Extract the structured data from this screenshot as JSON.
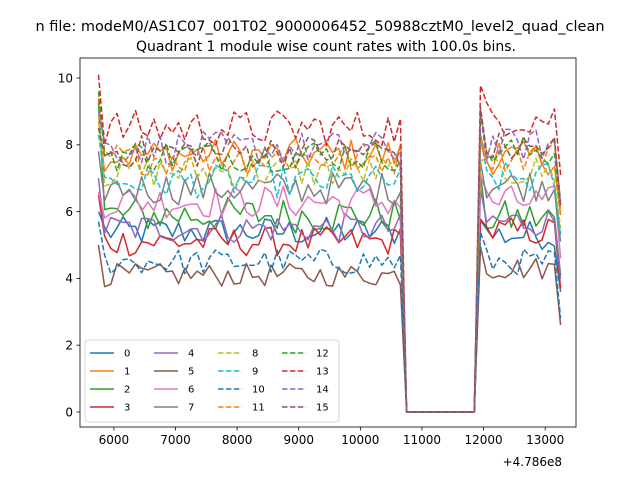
{
  "figure": {
    "suptitle": "n file: modeM0/AS1C07_001T02_9000006452_50988cztM0_level2_quad_clean",
    "title": "Quadrant 1 module wise count rates with 100.0s bins.",
    "offset_label": "+4.786e8"
  },
  "chart_data": {
    "type": "line",
    "title": "Quadrant 1 module wise count rates with 100.0s bins.",
    "xlabel": "",
    "ylabel": "",
    "x_offset": 478600000,
    "xlim": [
      5450,
      13500
    ],
    "ylim": [
      -0.45,
      10.6
    ],
    "x_ticks": [
      6000,
      7000,
      8000,
      9000,
      10000,
      11000,
      12000,
      13000
    ],
    "x_tick_labels": [
      "6000",
      "7000",
      "8000",
      "9000",
      "10000",
      "11000",
      "12000",
      "13000"
    ],
    "y_ticks": [
      0,
      2,
      4,
      6,
      8,
      10
    ],
    "y_tick_labels": [
      "0",
      "2",
      "4",
      "6",
      "8",
      "10"
    ],
    "grid": false,
    "legend_placement": "lower-left",
    "gap": {
      "start": 10750,
      "end": 11850
    },
    "active_a": {
      "start": 5750,
      "end": 10650
    },
    "active_b": {
      "start": 11950,
      "end": 13250
    },
    "series": [
      {
        "name": "0",
        "color": "#1f77b4",
        "dash": "solid",
        "level_a": 5.4,
        "level_b": 5.3,
        "start": 6.0,
        "spread": 0.45
      },
      {
        "name": "1",
        "color": "#ff7f0e",
        "dash": "solid",
        "level_a": 7.7,
        "level_b": 7.6,
        "start": 8.7,
        "spread": 0.5
      },
      {
        "name": "2",
        "color": "#2ca02c",
        "dash": "solid",
        "level_a": 5.9,
        "level_b": 5.8,
        "start": 9.3,
        "spread": 0.55
      },
      {
        "name": "3",
        "color": "#d62728",
        "dash": "solid",
        "level_a": 5.1,
        "level_b": 5.4,
        "start": 6.5,
        "spread": 0.45
      },
      {
        "name": "4",
        "color": "#9467bd",
        "dash": "solid",
        "level_a": 5.5,
        "level_b": 5.7,
        "start": 7.0,
        "spread": 0.45
      },
      {
        "name": "5",
        "color": "#8c564b",
        "dash": "solid",
        "level_a": 4.1,
        "level_b": 4.3,
        "start": 5.0,
        "spread": 0.35
      },
      {
        "name": "6",
        "color": "#e377c2",
        "dash": "solid",
        "level_a": 6.3,
        "level_b": 6.3,
        "start": 6.6,
        "spread": 0.5
      },
      {
        "name": "7",
        "color": "#7f7f7f",
        "dash": "solid",
        "level_a": 6.7,
        "level_b": 6.8,
        "start": 7.8,
        "spread": 0.5
      },
      {
        "name": "8",
        "color": "#bcbd22",
        "dash": "dashed",
        "level_a": 7.2,
        "level_b": 7.2,
        "start": 8.9,
        "spread": 0.5
      },
      {
        "name": "9",
        "color": "#17becf",
        "dash": "dashed",
        "level_a": 6.9,
        "level_b": 7.0,
        "start": 8.3,
        "spread": 0.5
      },
      {
        "name": "10",
        "color": "#1f77b4",
        "dash": "dashed",
        "level_a": 4.5,
        "level_b": 4.5,
        "start": 5.7,
        "spread": 0.4
      },
      {
        "name": "11",
        "color": "#ff7f0e",
        "dash": "dashed",
        "level_a": 7.6,
        "level_b": 7.7,
        "start": 9.4,
        "spread": 0.5
      },
      {
        "name": "12",
        "color": "#2ca02c",
        "dash": "dashed",
        "level_a": 7.7,
        "level_b": 7.8,
        "start": 9.6,
        "spread": 0.5
      },
      {
        "name": "13",
        "color": "#d62728",
        "dash": "dashed",
        "level_a": 8.5,
        "level_b": 8.8,
        "start": 10.1,
        "spread": 0.55
      },
      {
        "name": "14",
        "color": "#9467bd",
        "dash": "dashed",
        "level_a": 7.9,
        "level_b": 8.0,
        "start": 9.0,
        "spread": 0.5
      },
      {
        "name": "15",
        "color": "#8c564b",
        "dash": "dashed",
        "level_a": 7.8,
        "level_b": 7.9,
        "start": 8.5,
        "spread": 0.5
      }
    ]
  }
}
